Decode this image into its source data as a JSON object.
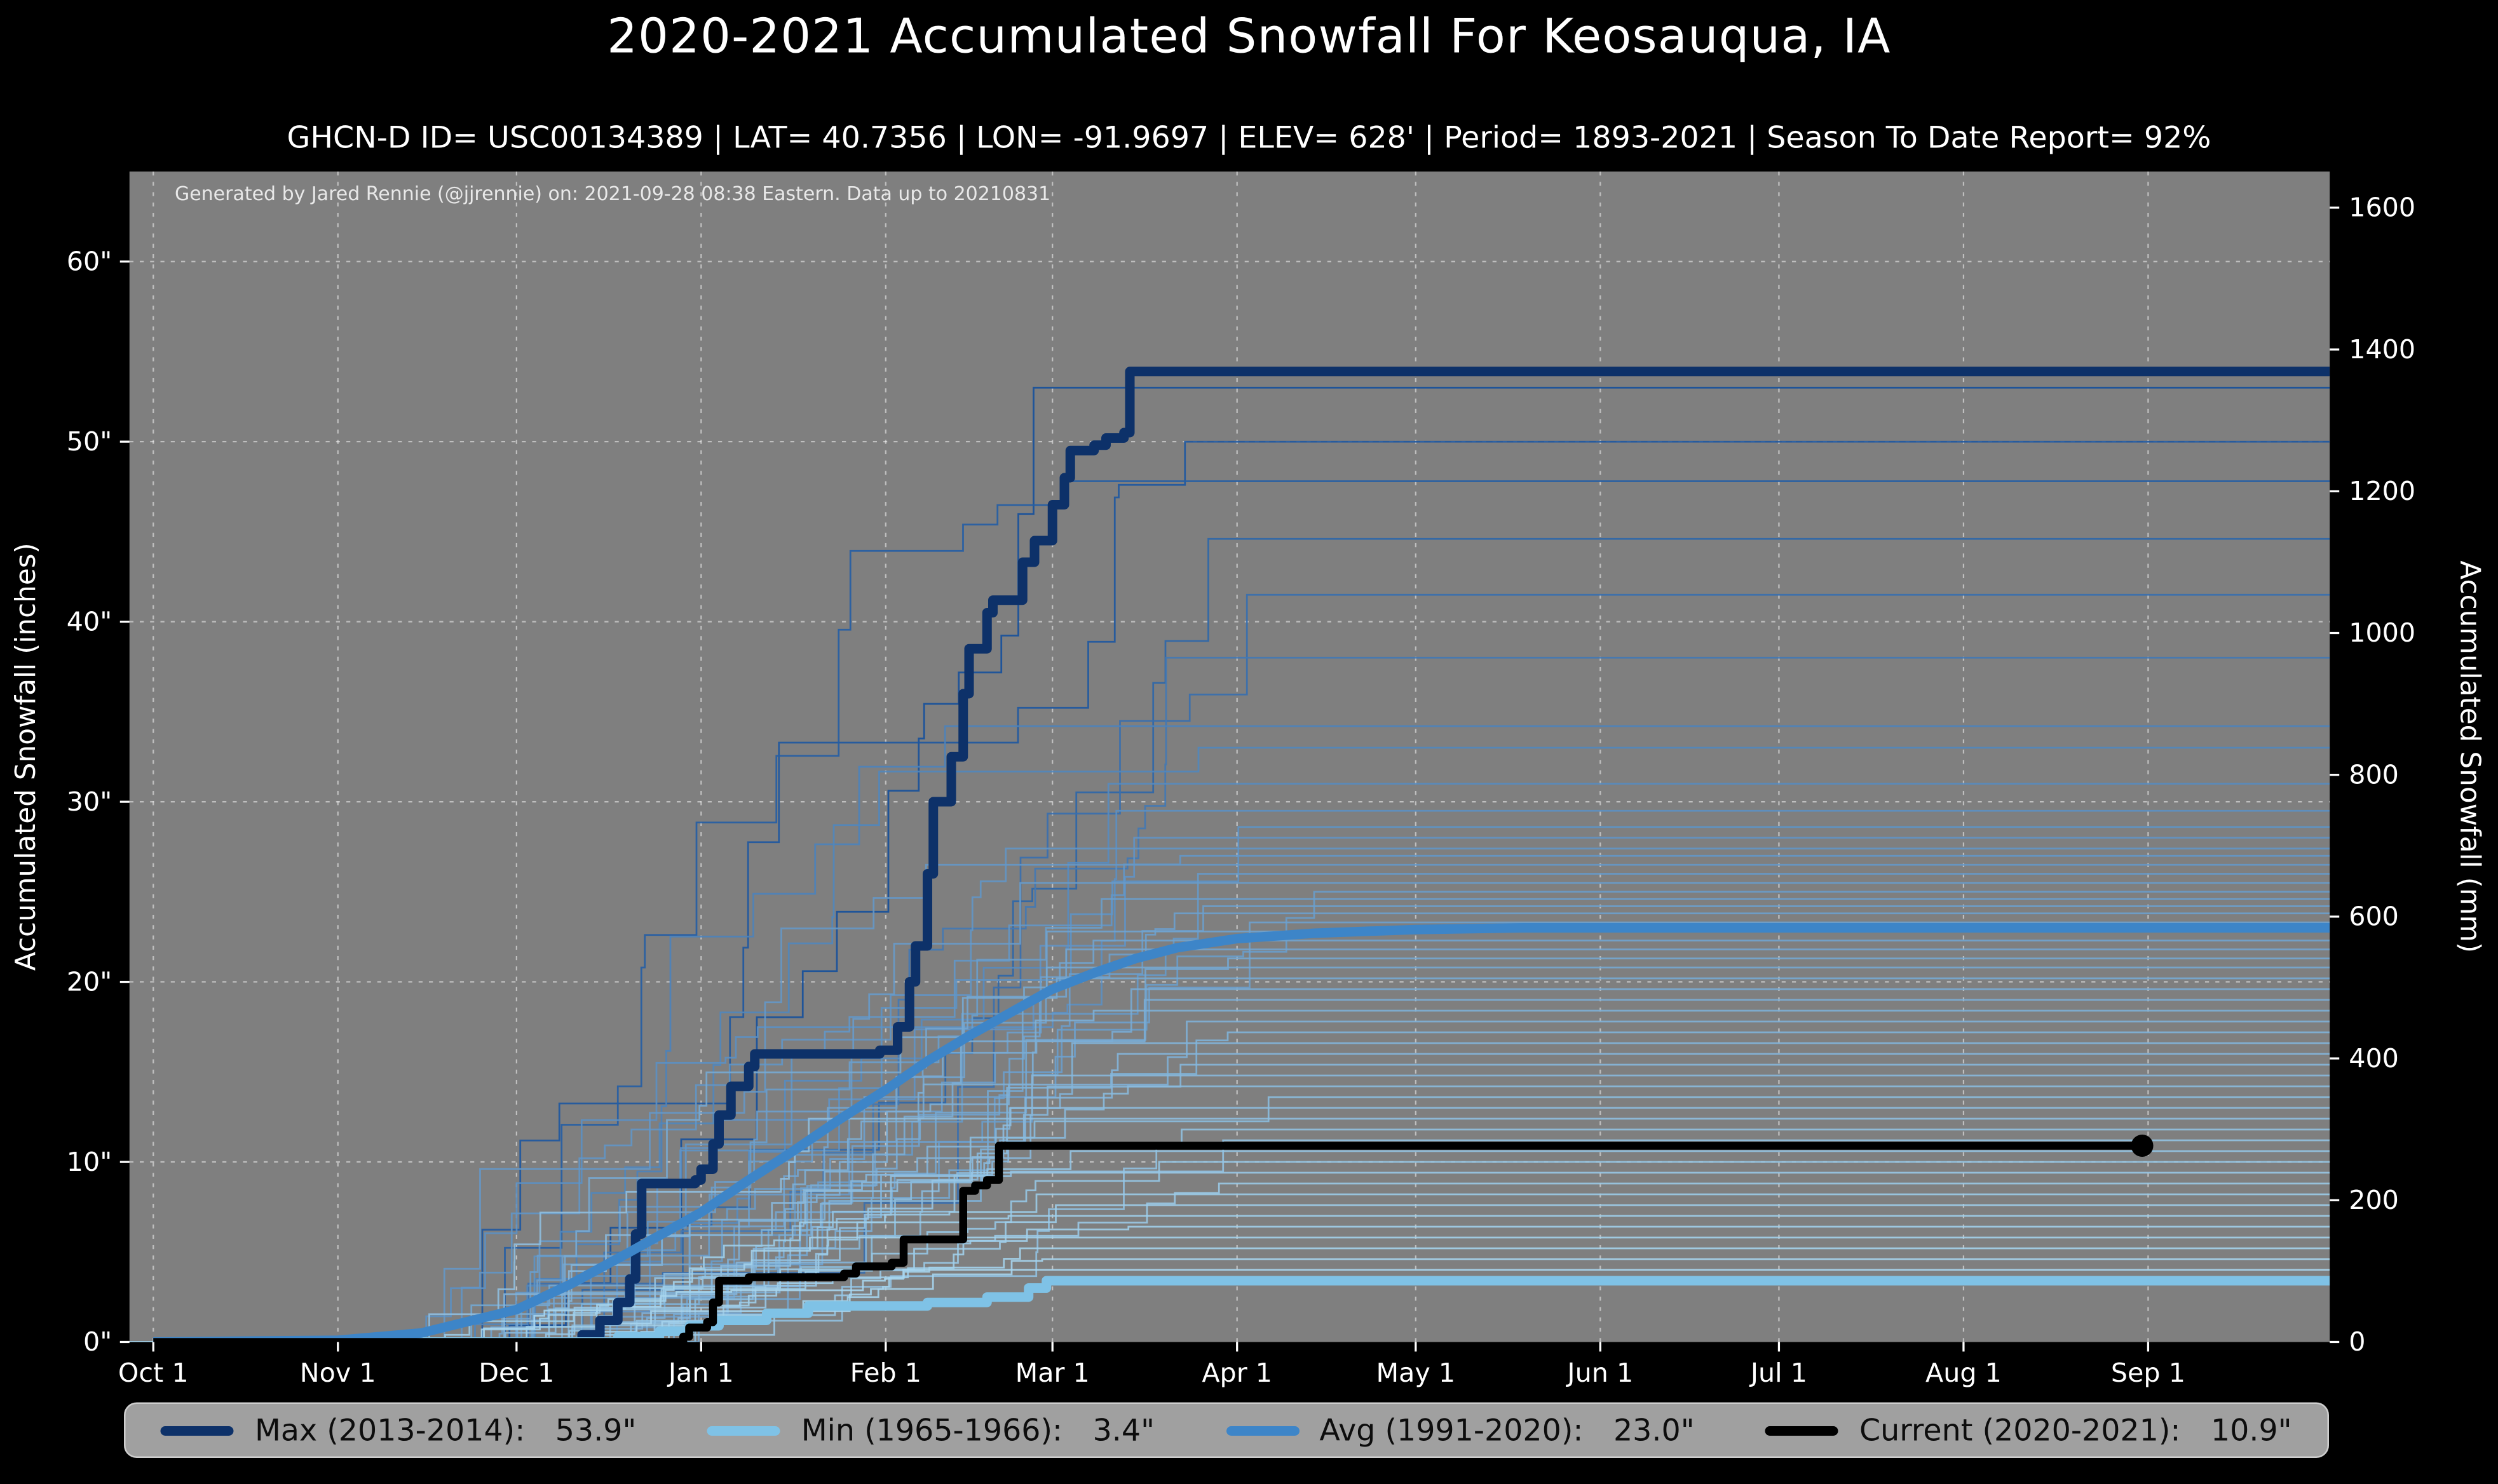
{
  "page": {
    "background": "#000000",
    "plot_background": "#7f7f7f"
  },
  "header": {
    "title": "2020-2021 Accumulated Snowfall For Keosauqua, IA",
    "subtitle": "GHCN-D ID= USC00134389 | LAT= 40.7356 | LON= -91.9697 | ELEV= 628' | Period= 1893-2021 | Season To Date Report= 92%"
  },
  "annotation": "Generated by Jared Rennie (@jjrennie) on: 2021-09-28 08:38 Eastern. Data up to 20210831",
  "legend": {
    "items": [
      {
        "label": "Max (2013-2014):",
        "value": "53.9\"",
        "color": "#0d3169"
      },
      {
        "label": "Min (1965-1966):",
        "value": "3.4\"",
        "color": "#7fc2e6"
      },
      {
        "label": "Avg (1991-2020):",
        "value": "23.0\"",
        "color": "#3d85c8"
      },
      {
        "label": "Current (2020-2021):",
        "value": "10.9\"",
        "color": "#000000"
      }
    ]
  },
  "chart_data": {
    "type": "line",
    "title": "2020-2021 Accumulated Snowfall For Keosauqua, IA",
    "grid": true,
    "plot_bg": "#7f7f7f",
    "x_axis": {
      "label": "",
      "tick_labels": [
        "Oct 1",
        "Nov 1",
        "Dec 1",
        "Jan 1",
        "Feb 1",
        "Mar 1",
        "Apr 1",
        "May 1",
        "Jun 1",
        "Jul 1",
        "Aug 1",
        "Sep 1"
      ],
      "tick_days": [
        0,
        31,
        61,
        92,
        123,
        151,
        182,
        212,
        243,
        273,
        304,
        335
      ],
      "range_days": [
        -4,
        365.5
      ]
    },
    "y_left": {
      "label": "Accumulated Snowfall (inches)",
      "tick_labels": [
        "0\"",
        "10\"",
        "20\"",
        "30\"",
        "40\"",
        "50\"",
        "60\""
      ],
      "tick_values": [
        0,
        10,
        20,
        30,
        40,
        50,
        60
      ],
      "range": [
        0,
        65
      ]
    },
    "y_right": {
      "label": "Accumulated Snowfall (mm)",
      "tick_values": [
        0,
        200,
        400,
        600,
        800,
        1000,
        1200,
        1400,
        1600
      ],
      "mm_per_inch": 25.4
    },
    "series": [
      {
        "name": "Max (2013-2014)",
        "total_label": "53.9\"",
        "color": "#0d3169",
        "width": 6,
        "style": "step",
        "points": [
          [
            0,
            0
          ],
          [
            70,
            0
          ],
          [
            72,
            0.4
          ],
          [
            75,
            1.2
          ],
          [
            78,
            2.2
          ],
          [
            80,
            3.5
          ],
          [
            81,
            6.0
          ],
          [
            82,
            8.8
          ],
          [
            91,
            9.0
          ],
          [
            92,
            9.6
          ],
          [
            94,
            11.0
          ],
          [
            95,
            12.6
          ],
          [
            97,
            14.2
          ],
          [
            100,
            15.3
          ],
          [
            101,
            16.0
          ],
          [
            122,
            16.2
          ],
          [
            125,
            17.5
          ],
          [
            127,
            20.0
          ],
          [
            128,
            22.0
          ],
          [
            130,
            26.0
          ],
          [
            131,
            30.0
          ],
          [
            134,
            32.5
          ],
          [
            136,
            36.0
          ],
          [
            137,
            38.5
          ],
          [
            140,
            40.5
          ],
          [
            141,
            41.2
          ],
          [
            146,
            43.3
          ],
          [
            148,
            44.5
          ],
          [
            151,
            46.5
          ],
          [
            153,
            48.0
          ],
          [
            154,
            49.5
          ],
          [
            158,
            49.8
          ],
          [
            160,
            50.2
          ],
          [
            163,
            50.5
          ],
          [
            164,
            53.9
          ],
          [
            365.5,
            53.9
          ]
        ]
      },
      {
        "name": "Min (1965-1966)",
        "total_label": "3.4\"",
        "color": "#7fc2e6",
        "width": 6,
        "style": "step",
        "points": [
          [
            0,
            0
          ],
          [
            76,
            0
          ],
          [
            78,
            0.3
          ],
          [
            85,
            0.6
          ],
          [
            90,
            0.9
          ],
          [
            95,
            1.2
          ],
          [
            103,
            1.6
          ],
          [
            110,
            2.0
          ],
          [
            130,
            2.2
          ],
          [
            140,
            2.5
          ],
          [
            147,
            3.0
          ],
          [
            150,
            3.4
          ],
          [
            365.5,
            3.4
          ]
        ]
      },
      {
        "name": "Avg (1991-2020)",
        "total_label": "23.0\"",
        "color": "#3d85c8",
        "width": 6,
        "style": "smooth",
        "points": [
          [
            0,
            0
          ],
          [
            31,
            0.1
          ],
          [
            45,
            0.5
          ],
          [
            61,
            1.8
          ],
          [
            70,
            3.2
          ],
          [
            80,
            5.0
          ],
          [
            92,
            7.2
          ],
          [
            100,
            9.0
          ],
          [
            107,
            10.5
          ],
          [
            115,
            12.3
          ],
          [
            123,
            14.0
          ],
          [
            130,
            15.6
          ],
          [
            137,
            17.0
          ],
          [
            144,
            18.3
          ],
          [
            151,
            19.6
          ],
          [
            158,
            20.5
          ],
          [
            165,
            21.3
          ],
          [
            172,
            21.9
          ],
          [
            182,
            22.4
          ],
          [
            195,
            22.7
          ],
          [
            212,
            22.9
          ],
          [
            230,
            23.0
          ],
          [
            365.5,
            23.0
          ]
        ]
      },
      {
        "name": "Current (2020-2021)",
        "total_label": "10.9\"",
        "color": "#000000",
        "width": 5,
        "style": "step",
        "end_marker": {
          "day": 334,
          "value": 10.9,
          "radius": 7
        },
        "points": [
          [
            0,
            0
          ],
          [
            88,
            0
          ],
          [
            89,
            0.3
          ],
          [
            90,
            0.8
          ],
          [
            93,
            1.1
          ],
          [
            94,
            2.2
          ],
          [
            95,
            3.4
          ],
          [
            100,
            3.6
          ],
          [
            116,
            3.8
          ],
          [
            118,
            4.2
          ],
          [
            124,
            4.4
          ],
          [
            126,
            5.7
          ],
          [
            134,
            5.7
          ],
          [
            136,
            8.4
          ],
          [
            138,
            8.7
          ],
          [
            140,
            9.0
          ],
          [
            142,
            10.9
          ],
          [
            334,
            10.9
          ]
        ]
      }
    ],
    "background_years": {
      "description": "Thin lines: each historical season 1893-2021, [season_total_inches, accumulation_start_day, accumulation_end_day]",
      "color_high_total": "#15509c",
      "color_low_total": "#a8d6ee",
      "lines": [
        [
          53,
          58,
          160
        ],
        [
          50,
          50,
          175
        ],
        [
          47.8,
          55,
          182
        ],
        [
          44.6,
          62,
          178
        ],
        [
          41.5,
          48,
          188
        ],
        [
          38,
          70,
          172
        ],
        [
          34.2,
          60,
          168
        ],
        [
          33,
          52,
          180
        ],
        [
          31,
          66,
          176
        ],
        [
          29.5,
          45,
          170
        ],
        [
          28.6,
          58,
          190
        ],
        [
          28,
          72,
          165
        ],
        [
          27.4,
          50,
          158
        ],
        [
          27,
          64,
          185
        ],
        [
          26.5,
          42,
          150
        ],
        [
          26,
          68,
          178
        ],
        [
          25.5,
          56,
          168
        ],
        [
          25,
          74,
          195
        ],
        [
          24.6,
          48,
          160
        ],
        [
          24.2,
          62,
          182
        ],
        [
          23.8,
          54,
          172
        ],
        [
          23.3,
          70,
          188
        ],
        [
          22.8,
          44,
          155
        ],
        [
          22.3,
          66,
          176
        ],
        [
          21.8,
          58,
          165
        ],
        [
          21.3,
          50,
          185
        ],
        [
          20.8,
          76,
          192
        ],
        [
          20.2,
          46,
          158
        ],
        [
          19.6,
          64,
          170
        ],
        [
          19,
          56,
          180
        ],
        [
          18.4,
          72,
          162
        ],
        [
          17.8,
          52,
          175
        ],
        [
          17.2,
          68,
          188
        ],
        [
          16.6,
          60,
          155
        ],
        [
          16,
          48,
          168
        ],
        [
          15.4,
          74,
          182
        ],
        [
          14.8,
          54,
          160
        ],
        [
          14.2,
          66,
          172
        ],
        [
          13.6,
          58,
          190
        ],
        [
          13,
          70,
          165
        ],
        [
          12.4,
          46,
          152
        ],
        [
          11.8,
          62,
          178
        ],
        [
          11.2,
          76,
          185
        ],
        [
          10.6,
          52,
          158
        ],
        [
          10,
          68,
          170
        ],
        [
          9.4,
          56,
          162
        ],
        [
          8.8,
          72,
          180
        ],
        [
          8.2,
          48,
          150
        ],
        [
          7.6,
          64,
          168
        ],
        [
          7,
          58,
          155
        ],
        [
          6.4,
          74,
          175
        ],
        [
          5.8,
          50,
          148
        ],
        [
          5.2,
          66,
          160
        ],
        [
          4.6,
          60,
          152
        ],
        [
          4,
          54,
          145
        ]
      ]
    }
  }
}
